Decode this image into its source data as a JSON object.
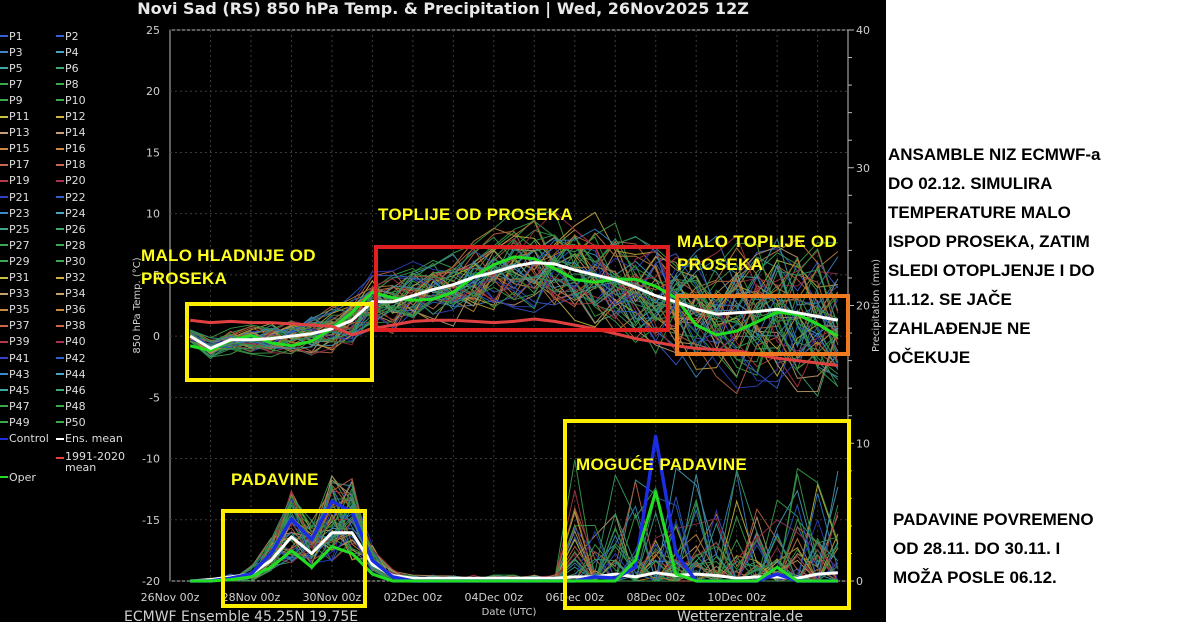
{
  "title": "Novi Sad  (RS)  850 hPa Temp. & Precipitation | Wed, 26Nov2025 12Z",
  "footer": {
    "left": "ECMWF Ensemble  45.25N  19.75E",
    "right": "Wetterzentrale.de"
  },
  "legend": {
    "items": [
      {
        "label": "P1",
        "color": "#3b5fd6"
      },
      {
        "label": "P2",
        "color": "#3b5fd6"
      },
      {
        "label": "P3",
        "color": "#3f86c8"
      },
      {
        "label": "P4",
        "color": "#49a3c0"
      },
      {
        "label": "P5",
        "color": "#3fa7a4"
      },
      {
        "label": "P6",
        "color": "#3ea86e"
      },
      {
        "label": "P7",
        "color": "#3ca84e"
      },
      {
        "label": "P8",
        "color": "#3ca84e"
      },
      {
        "label": "P9",
        "color": "#3ca84e"
      },
      {
        "label": "P10",
        "color": "#3ca84e"
      },
      {
        "label": "P11",
        "color": "#c8c040"
      },
      {
        "label": "P12",
        "color": "#d0b040"
      },
      {
        "label": "P13",
        "color": "#c8a070"
      },
      {
        "label": "P14",
        "color": "#c8a070"
      },
      {
        "label": "P15",
        "color": "#c88840"
      },
      {
        "label": "P16",
        "color": "#c88840"
      },
      {
        "label": "P17",
        "color": "#c86848"
      },
      {
        "label": "P18",
        "color": "#c86848"
      },
      {
        "label": "P19",
        "color": "#b83848"
      },
      {
        "label": "P20",
        "color": "#a83050"
      },
      {
        "label": "P21",
        "color": "#3040c8"
      },
      {
        "label": "P22",
        "color": "#3060d0"
      },
      {
        "label": "P23",
        "color": "#3a8ad0"
      },
      {
        "label": "P24",
        "color": "#49a3c0"
      },
      {
        "label": "P25",
        "color": "#3fa790"
      },
      {
        "label": "P26",
        "color": "#3ea86e"
      },
      {
        "label": "P27",
        "color": "#3ca84e"
      },
      {
        "label": "P28",
        "color": "#3ca84e"
      },
      {
        "label": "P29",
        "color": "#3ca84e"
      },
      {
        "label": "P30",
        "color": "#3ca84e"
      },
      {
        "label": "P31",
        "color": "#c8c040"
      },
      {
        "label": "P32",
        "color": "#d0b040"
      },
      {
        "label": "P33",
        "color": "#c8a070"
      },
      {
        "label": "P34",
        "color": "#c8a070"
      },
      {
        "label": "P35",
        "color": "#c88840"
      },
      {
        "label": "P36",
        "color": "#c88840"
      },
      {
        "label": "P37",
        "color": "#c86848"
      },
      {
        "label": "P38",
        "color": "#c86848"
      },
      {
        "label": "P39",
        "color": "#b83848"
      },
      {
        "label": "P40",
        "color": "#a83050"
      },
      {
        "label": "P41",
        "color": "#3040c8"
      },
      {
        "label": "P42",
        "color": "#3060d0"
      },
      {
        "label": "P43",
        "color": "#3a8ad0"
      },
      {
        "label": "P44",
        "color": "#49a3c0"
      },
      {
        "label": "P45",
        "color": "#3fa7a4"
      },
      {
        "label": "P46",
        "color": "#3ea86e"
      },
      {
        "label": "P47",
        "color": "#3ca84e"
      },
      {
        "label": "P48",
        "color": "#3ca84e"
      },
      {
        "label": "P49",
        "color": "#3ca84e"
      },
      {
        "label": "P50",
        "color": "#3ca84e"
      }
    ],
    "control": {
      "label": "Control",
      "color": "#1a2de0"
    },
    "ens_mean": {
      "label": "Ens. mean",
      "color": "#ffffff"
    },
    "climate": {
      "label": "1991-2020\nmean",
      "label_line1": "1991-2020",
      "label_line2": "mean",
      "color": "#e04040"
    },
    "oper": {
      "label": "Oper",
      "color": "#22dd22"
    }
  },
  "annotations": {
    "cold": {
      "line1": "MALO HLADNIJE OD",
      "line2": "PROSEKA",
      "box_color": "#ffee00"
    },
    "warm": {
      "line1": "TOPLIJE OD PROSEKA",
      "box_color": "#e02020"
    },
    "slightly_warm": {
      "line1": "MALO TOPLIJE OD",
      "line2": "PROSEKA",
      "box_color": "#f07a20"
    },
    "precip1": {
      "line1": "PADAVINE",
      "box_color": "#ffee00"
    },
    "precip2": {
      "line1": "MOGUĆE PADAVINE",
      "box_color": "#ffee00"
    }
  },
  "side_text": {
    "block1": [
      "ANSAMBLE NIZ ECMWF-a",
      "DO 02.12. SIMULIRA",
      "TEMPERATURE MALO",
      "ISPOD PROSEKA, ZATIM",
      "SLEDI OTOPLJENJE I DO",
      "11.12. SE JAČE",
      "ZAHLAĐENJE NE",
      "OČEKUJE"
    ],
    "block2": [
      "PADAVINE POVREMENO",
      "OD 28.11. DO 30.11. I",
      "MOŽA POSLE 06.12."
    ]
  },
  "chart_data": {
    "type": "line",
    "title": "Novi Sad  (RS)  850 hPa Temp. & Precipitation | Wed, 26Nov2025 12Z",
    "xlabel": "Date (UTC)",
    "ylabel": "850 hPa Temp. (°C)",
    "y2label": "Precipitation (mm)",
    "x_ticks": [
      "26Nov 00z",
      "28Nov 00z",
      "30Nov 00z",
      "02Dec 00z",
      "04Dec 00z",
      "06Dec 00z",
      "08Dec 00z",
      "10Dec 00z"
    ],
    "y_ticks": [
      -20,
      -15,
      -10,
      -5,
      0,
      5,
      10,
      15,
      20,
      25
    ],
    "y2_ticks": [
      0,
      10,
      20,
      30,
      40
    ],
    "ylim": [
      -20,
      25
    ],
    "y2lim": [
      0,
      40
    ],
    "grid": true,
    "legend_position": "left outside",
    "x_days": [
      0.5,
      1,
      1.5,
      2,
      2.5,
      3,
      3.5,
      4,
      4.5,
      5,
      5.5,
      6,
      6.5,
      7,
      7.5,
      8,
      8.5,
      9,
      9.5,
      10,
      10.5,
      11,
      11.5,
      12,
      12.5,
      13,
      13.5,
      14,
      14.5,
      15,
      15.5,
      16,
      16.5
    ],
    "x_days_note": "days since 26Nov 00z",
    "series": [
      {
        "name": "Ens. mean (850 hPa temp)",
        "axis": "temp",
        "values": [
          0.0,
          -1.0,
          -0.3,
          -0.3,
          -0.2,
          0.0,
          0.2,
          0.6,
          1.3,
          2.8,
          2.8,
          3.3,
          3.8,
          4.2,
          4.8,
          5.2,
          5.7,
          6.0,
          5.9,
          5.4,
          5.0,
          4.6,
          4.0,
          3.3,
          2.8,
          2.2,
          1.8,
          1.9,
          2.0,
          2.2,
          1.9,
          1.6,
          1.3
        ]
      },
      {
        "name": "1991-2020 mean (850 hPa temp)",
        "axis": "temp",
        "values": [
          1.3,
          1.1,
          1.2,
          1.1,
          1.1,
          1.0,
          0.9,
          0.8,
          0.1,
          0.6,
          0.9,
          1.2,
          1.3,
          1.3,
          1.2,
          1.1,
          1.2,
          1.4,
          1.2,
          0.9,
          0.6,
          0.2,
          -0.2,
          -0.5,
          -0.8,
          -1.0,
          -1.1,
          -1.2,
          -1.5,
          -1.8,
          -2.0,
          -2.2,
          -2.4
        ]
      },
      {
        "name": "Ens. mean (precipitation)",
        "axis": "precip",
        "values": [
          0.0,
          0.1,
          0.3,
          0.5,
          1.5,
          3.2,
          2.0,
          3.5,
          3.5,
          1.2,
          0.4,
          0.2,
          0.2,
          0.2,
          0.2,
          0.2,
          0.2,
          0.2,
          0.2,
          0.3,
          0.3,
          0.5,
          0.3,
          0.6,
          0.4,
          0.5,
          0.4,
          0.2,
          0.3,
          0.3,
          0.2,
          0.5,
          0.6
        ]
      },
      {
        "name": "Control (precipitation)",
        "axis": "precip",
        "values": [
          0.0,
          0.0,
          0.2,
          0.5,
          2.0,
          4.5,
          3.0,
          5.8,
          5.0,
          1.5,
          0.3,
          0.0,
          0.0,
          0.0,
          0.0,
          0.0,
          0.0,
          0.0,
          0.0,
          0.0,
          0.3,
          0.2,
          1.0,
          10.5,
          2.0,
          0.0,
          0.0,
          0.0,
          0.0,
          0.5,
          0.0,
          0.0,
          0.0
        ]
      },
      {
        "name": "Oper (precipitation)",
        "axis": "precip",
        "values": [
          0.0,
          0.0,
          0.1,
          0.3,
          1.0,
          2.2,
          1.0,
          2.5,
          2.0,
          0.5,
          0.0,
          0.0,
          0.0,
          0.0,
          0.0,
          0.0,
          0.0,
          0.0,
          0.0,
          0.0,
          0.0,
          0.0,
          1.5,
          6.5,
          0.5,
          0.0,
          0.0,
          0.0,
          0.0,
          1.0,
          0.0,
          0.0,
          0.0
        ]
      }
    ],
    "annotations": [
      {
        "text": "MALO HLADNIJE OD PROSEKA",
        "x_range": [
          "26Nov 12z",
          "01Dec 00z"
        ],
        "y_range": [
          -3.5,
          2.5
        ]
      },
      {
        "text": "TOPLIJE OD PROSEKA",
        "x_range": [
          "01Dec 00z",
          "06Dec 00z"
        ],
        "y_range": [
          0.5,
          7.0
        ]
      },
      {
        "text": "MALO TOPLIJE OD PROSEKA",
        "x_range": [
          "06Dec 00z",
          "11Dec 00z"
        ],
        "y_range": [
          -1.5,
          3.2
        ]
      },
      {
        "text": "PADAVINE",
        "x_range": [
          "27Nov 12z",
          "30Nov 12z"
        ]
      },
      {
        "text": "MOGUĆE PADAVINE",
        "x_range": [
          "05Dec 12z",
          "11Dec 00z"
        ]
      }
    ]
  }
}
